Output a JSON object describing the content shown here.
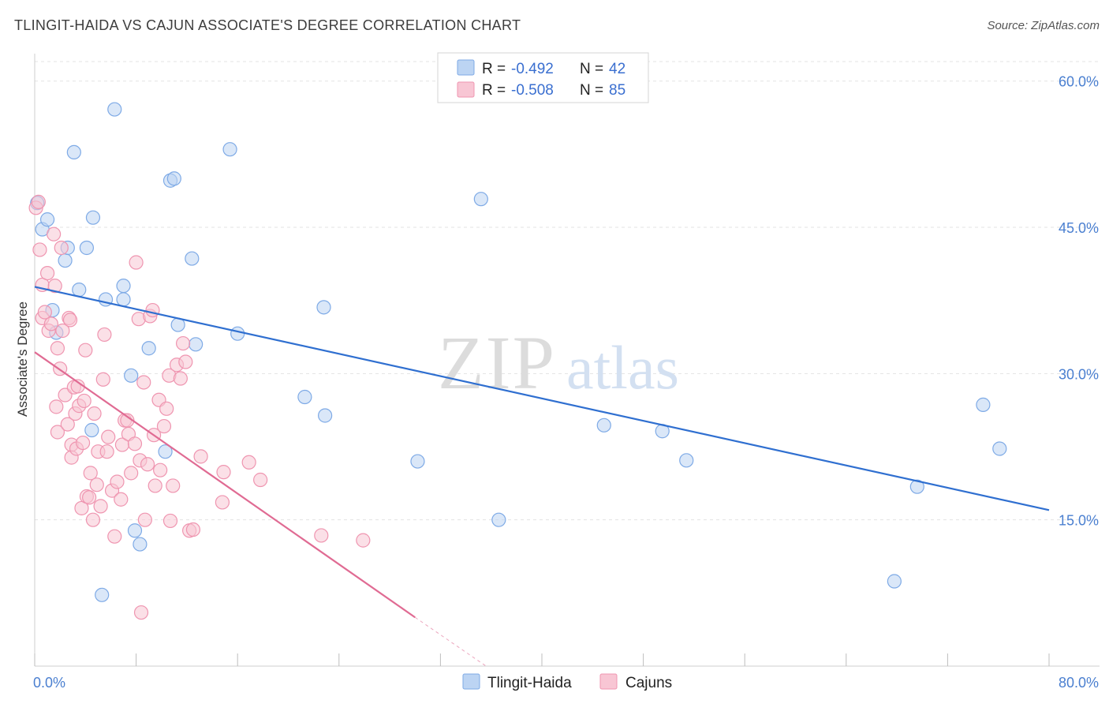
{
  "chart_data": {
    "type": "scatter",
    "title": "TLINGIT-HAIDA VS CAJUN ASSOCIATE'S DEGREE CORRELATION CHART",
    "source": "Source: ZipAtlas.com",
    "watermark": {
      "zip": "ZIP",
      "atlas": "atlas"
    },
    "xlabel": "",
    "ylabel": "Associate's Degree",
    "xlim": [
      0,
      80
    ],
    "ylim": [
      0,
      62
    ],
    "x_tick_labels": [
      {
        "value": 0,
        "label": "0.0%"
      },
      {
        "value": 80,
        "label": "80.0%"
      }
    ],
    "x_minor_ticks": [
      0,
      8,
      16,
      24,
      32,
      40,
      48,
      56,
      64,
      72,
      80
    ],
    "y_ticks": [
      {
        "value": 15,
        "label": "15.0%"
      },
      {
        "value": 30,
        "label": "30.0%"
      },
      {
        "value": 45,
        "label": "45.0%"
      },
      {
        "value": 60,
        "label": "60.0%"
      }
    ],
    "legend": {
      "position": "top-center",
      "rows": [
        {
          "r_label": "R =",
          "r_value": "-0.492",
          "n_label": "N =",
          "n_value": "42",
          "color": "#a9c7ee"
        },
        {
          "r_label": "R =",
          "r_value": "-0.508",
          "n_label": "N =",
          "n_value": "85",
          "color": "#f5b8cb"
        }
      ]
    },
    "bottom_legend": [
      {
        "name": "Tlingit-Haida",
        "color": "#a9c7ee"
      },
      {
        "name": "Cajuns",
        "color": "#f5b8cb"
      }
    ],
    "series": [
      {
        "name": "Tlingit-Haida",
        "fill": "#bcd4f3",
        "stroke": "#7eaae6",
        "line_color": "#2f6fd0",
        "trend": {
          "x": [
            0,
            80
          ],
          "y": [
            38.9,
            16.0
          ]
        },
        "points": [
          [
            0.2,
            47.5
          ],
          [
            0.6,
            44.8
          ],
          [
            1.0,
            45.8
          ],
          [
            1.4,
            36.5
          ],
          [
            1.7,
            34.2
          ],
          [
            2.4,
            41.6
          ],
          [
            2.6,
            42.9
          ],
          [
            3.1,
            52.7
          ],
          [
            3.5,
            38.6
          ],
          [
            4.1,
            42.9
          ],
          [
            4.6,
            46.0
          ],
          [
            4.5,
            24.2
          ],
          [
            5.3,
            7.3
          ],
          [
            5.6,
            37.6
          ],
          [
            6.3,
            57.1
          ],
          [
            7.0,
            39.0
          ],
          [
            7.0,
            37.6
          ],
          [
            7.6,
            29.8
          ],
          [
            7.9,
            13.9
          ],
          [
            8.3,
            12.5
          ],
          [
            9.0,
            32.6
          ],
          [
            10.3,
            22.0
          ],
          [
            10.7,
            49.8
          ],
          [
            11.0,
            50.0
          ],
          [
            11.3,
            35.0
          ],
          [
            12.4,
            41.8
          ],
          [
            12.7,
            33.0
          ],
          [
            15.4,
            53.0
          ],
          [
            16.0,
            34.1
          ],
          [
            21.3,
            27.6
          ],
          [
            22.8,
            36.8
          ],
          [
            22.9,
            25.7
          ],
          [
            30.2,
            21.0
          ],
          [
            35.2,
            47.9
          ],
          [
            36.6,
            15.0
          ],
          [
            44.9,
            24.7
          ],
          [
            49.5,
            24.1
          ],
          [
            51.4,
            21.1
          ],
          [
            67.8,
            8.7
          ],
          [
            69.6,
            18.4
          ],
          [
            74.8,
            26.8
          ],
          [
            76.1,
            22.3
          ]
        ]
      },
      {
        "name": "Cajuns",
        "fill": "#f8c6d4",
        "stroke": "#ef95b0",
        "line_color": "#e06b93",
        "trend": {
          "x": [
            0,
            30.0
          ],
          "y": [
            32.2,
            5.0
          ]
        },
        "trend_dashed": {
          "x": [
            30.0,
            35.6
          ],
          "y": [
            5.0,
            0.0
          ]
        },
        "points": [
          [
            0.1,
            47.0
          ],
          [
            0.4,
            42.7
          ],
          [
            0.6,
            39.1
          ],
          [
            0.6,
            35.7
          ],
          [
            0.8,
            36.3
          ],
          [
            1.0,
            40.3
          ],
          [
            1.1,
            34.4
          ],
          [
            1.3,
            35.1
          ],
          [
            1.5,
            44.3
          ],
          [
            1.6,
            39.0
          ],
          [
            1.7,
            26.6
          ],
          [
            1.8,
            32.6
          ],
          [
            1.8,
            24.0
          ],
          [
            2.0,
            30.5
          ],
          [
            2.1,
            42.9
          ],
          [
            2.2,
            34.4
          ],
          [
            2.4,
            27.8
          ],
          [
            2.6,
            24.8
          ],
          [
            2.7,
            35.7
          ],
          [
            2.8,
            35.5
          ],
          [
            2.9,
            22.7
          ],
          [
            2.9,
            21.4
          ],
          [
            3.1,
            28.6
          ],
          [
            3.2,
            25.9
          ],
          [
            3.3,
            22.3
          ],
          [
            3.4,
            28.7
          ],
          [
            3.5,
            26.7
          ],
          [
            3.7,
            16.2
          ],
          [
            3.8,
            22.9
          ],
          [
            3.9,
            27.2
          ],
          [
            4.0,
            32.4
          ],
          [
            4.1,
            17.4
          ],
          [
            4.3,
            17.3
          ],
          [
            4.4,
            19.8
          ],
          [
            4.6,
            15.0
          ],
          [
            4.7,
            25.9
          ],
          [
            4.9,
            18.6
          ],
          [
            5.0,
            22.0
          ],
          [
            5.2,
            16.4
          ],
          [
            5.4,
            29.4
          ],
          [
            5.5,
            34.0
          ],
          [
            5.7,
            22.0
          ],
          [
            5.8,
            23.5
          ],
          [
            6.1,
            18.0
          ],
          [
            6.3,
            13.3
          ],
          [
            6.5,
            18.9
          ],
          [
            6.8,
            17.1
          ],
          [
            6.9,
            22.7
          ],
          [
            7.1,
            25.2
          ],
          [
            7.3,
            25.2
          ],
          [
            7.4,
            23.8
          ],
          [
            7.6,
            19.8
          ],
          [
            7.9,
            22.8
          ],
          [
            8.0,
            41.4
          ],
          [
            8.2,
            35.6
          ],
          [
            8.3,
            21.1
          ],
          [
            8.4,
            5.5
          ],
          [
            8.6,
            29.1
          ],
          [
            8.7,
            15.0
          ],
          [
            8.9,
            20.7
          ],
          [
            9.1,
            35.9
          ],
          [
            9.3,
            36.5
          ],
          [
            9.4,
            23.7
          ],
          [
            9.5,
            18.5
          ],
          [
            9.8,
            27.3
          ],
          [
            9.9,
            20.1
          ],
          [
            10.2,
            24.6
          ],
          [
            10.4,
            26.4
          ],
          [
            10.6,
            29.8
          ],
          [
            10.7,
            14.9
          ],
          [
            10.9,
            18.5
          ],
          [
            11.2,
            30.9
          ],
          [
            11.5,
            29.5
          ],
          [
            11.7,
            33.1
          ],
          [
            11.9,
            31.2
          ],
          [
            12.2,
            13.9
          ],
          [
            12.5,
            14.0
          ],
          [
            13.1,
            21.5
          ],
          [
            14.8,
            16.8
          ],
          [
            14.9,
            19.9
          ],
          [
            16.9,
            20.9
          ],
          [
            17.8,
            19.1
          ],
          [
            22.6,
            13.4
          ],
          [
            25.9,
            12.9
          ],
          [
            0.3,
            47.6
          ]
        ]
      }
    ]
  }
}
